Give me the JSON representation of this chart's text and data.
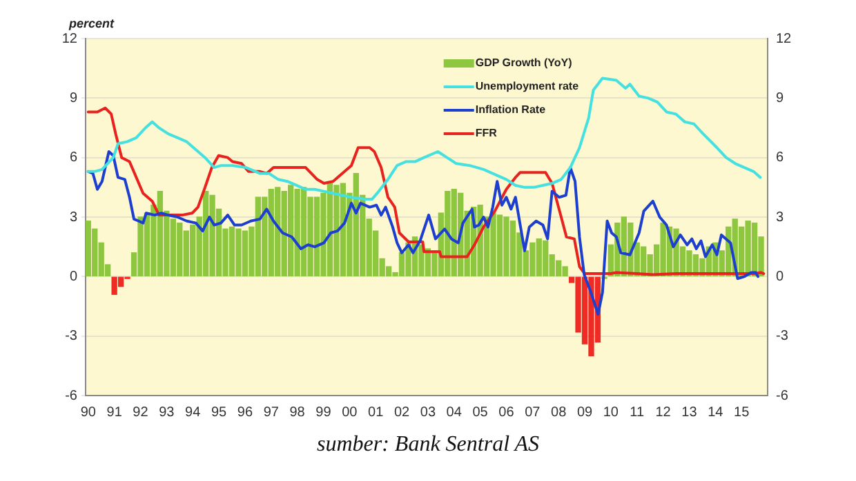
{
  "chart_data": {
    "type": "bar",
    "ylabel": "percent",
    "annotations": [
      "sumber:  Bank Sentral AS"
    ],
    "xlim": [
      1989.9,
      2016
    ],
    "xticks": [
      {
        "value": 1990,
        "label": "90"
      },
      {
        "value": 1991,
        "label": "91"
      },
      {
        "value": 1992,
        "label": "92"
      },
      {
        "value": 1993,
        "label": "93"
      },
      {
        "value": 1994,
        "label": "94"
      },
      {
        "value": 1995,
        "label": "95"
      },
      {
        "value": 1996,
        "label": "96"
      },
      {
        "value": 1997,
        "label": "97"
      },
      {
        "value": 1998,
        "label": "98"
      },
      {
        "value": 1999,
        "label": "99"
      },
      {
        "value": 2000,
        "label": "00"
      },
      {
        "value": 2001,
        "label": "01"
      },
      {
        "value": 2002,
        "label": "02"
      },
      {
        "value": 2003,
        "label": "03"
      },
      {
        "value": 2004,
        "label": "04"
      },
      {
        "value": 2005,
        "label": "05"
      },
      {
        "value": 2006,
        "label": "06"
      },
      {
        "value": 2007,
        "label": "07"
      },
      {
        "value": 2008,
        "label": "08"
      },
      {
        "value": 2009,
        "label": "09"
      },
      {
        "value": 2010,
        "label": "10"
      },
      {
        "value": 2011,
        "label": "11"
      },
      {
        "value": 2012,
        "label": "12"
      },
      {
        "value": 2013,
        "label": "13"
      },
      {
        "value": 2014,
        "label": "14"
      },
      {
        "value": 2015,
        "label": "15"
      }
    ],
    "ylim": [
      -6,
      12
    ],
    "yticks": [
      -6,
      -3,
      0,
      3,
      6,
      9,
      12
    ],
    "y2lim": [
      -6,
      12
    ],
    "y2ticks": [
      -6,
      -3,
      0,
      3,
      6,
      9,
      12
    ],
    "grid": "y",
    "legend": "top",
    "marker": "none",
    "series": [
      {
        "name": "GDP Growth (YoY)",
        "color": "#8dc63f",
        "x": [
          1990,
          1990.25,
          1990.5,
          1990.75,
          1991,
          1991.25,
          1991.5,
          1991.75,
          1992,
          1992.25,
          1992.5,
          1992.75,
          1993,
          1993.25,
          1993.5,
          1993.75,
          1994,
          1994.25,
          1994.5,
          1994.75,
          1995,
          1995.25,
          1995.5,
          1995.75,
          1996,
          1996.25,
          1996.5,
          1996.75,
          1997,
          1997.25,
          1997.5,
          1997.75,
          1998,
          1998.25,
          1998.5,
          1998.75,
          1999,
          1999.25,
          1999.5,
          1999.75,
          2000,
          2000.25,
          2000.5,
          2000.75,
          2001,
          2001.25,
          2001.5,
          2001.75,
          2002,
          2002.25,
          2002.5,
          2002.75,
          2003,
          2003.25,
          2003.5,
          2003.75,
          2004,
          2004.25,
          2004.5,
          2004.75,
          2005,
          2005.25,
          2005.5,
          2005.75,
          2006,
          2006.25,
          2006.5,
          2006.75,
          2007,
          2007.25,
          2007.5,
          2007.75,
          2008,
          2008.25,
          2008.5,
          2008.75,
          2009,
          2009.25,
          2009.5,
          2009.75,
          2010,
          2010.25,
          2010.5,
          2010.75,
          2011,
          2011.25,
          2011.5,
          2011.75,
          2012,
          2012.25,
          2012.5,
          2012.75,
          2013,
          2013.25,
          2013.5,
          2013.75,
          2014,
          2014.25,
          2014.5,
          2014.75,
          2015,
          2015.25,
          2015.5,
          2015.75
        ],
        "values": [
          2.8,
          2.4,
          1.7,
          0.6,
          -0.9,
          -0.5,
          -0.1,
          1.2,
          3.0,
          3.2,
          3.6,
          4.3,
          3.3,
          2.9,
          2.7,
          2.3,
          2.6,
          3.0,
          4.3,
          4.1,
          3.4,
          2.4,
          2.5,
          2.4,
          2.3,
          2.5,
          4.0,
          4.0,
          4.4,
          4.5,
          4.3,
          4.6,
          4.4,
          4.5,
          4.0,
          4.0,
          4.2,
          4.7,
          4.6,
          4.7,
          4.2,
          5.2,
          4.1,
          2.9,
          2.3,
          0.9,
          0.5,
          0.2,
          1.2,
          1.7,
          2.0,
          1.6,
          1.4,
          1.3,
          3.2,
          4.3,
          4.4,
          4.2,
          3.3,
          3.5,
          3.6,
          3.0,
          3.2,
          3.1,
          3.0,
          2.8,
          2.2,
          1.3,
          1.7,
          1.9,
          1.8,
          1.1,
          0.8,
          0.5,
          -0.3,
          -2.8,
          -3.4,
          -4.0,
          -3.3,
          -0.1,
          1.6,
          2.7,
          3.0,
          2.7,
          1.7,
          1.5,
          1.1,
          1.6,
          2.7,
          2.5,
          2.4,
          1.5,
          1.3,
          1.1,
          0.9,
          1.5,
          1.7,
          1.3,
          2.5,
          2.9,
          2.5,
          2.8,
          2.7,
          2.0
        ],
        "colors": [
          "#8dc63f",
          "#8dc63f",
          "#8dc63f",
          "#8dc63f",
          "#ee2b24",
          "#ee2b24",
          "#ee2b24",
          "#8dc63f",
          "#8dc63f",
          "#8dc63f",
          "#8dc63f",
          "#8dc63f",
          "#8dc63f",
          "#8dc63f",
          "#8dc63f",
          "#8dc63f",
          "#8dc63f",
          "#8dc63f",
          "#8dc63f",
          "#8dc63f",
          "#8dc63f",
          "#8dc63f",
          "#8dc63f",
          "#8dc63f",
          "#8dc63f",
          "#8dc63f",
          "#8dc63f",
          "#8dc63f",
          "#8dc63f",
          "#8dc63f",
          "#8dc63f",
          "#8dc63f",
          "#8dc63f",
          "#8dc63f",
          "#8dc63f",
          "#8dc63f",
          "#8dc63f",
          "#8dc63f",
          "#8dc63f",
          "#8dc63f",
          "#8dc63f",
          "#8dc63f",
          "#8dc63f",
          "#8dc63f",
          "#8dc63f",
          "#8dc63f",
          "#8dc63f",
          "#8dc63f",
          "#8dc63f",
          "#8dc63f",
          "#8dc63f",
          "#8dc63f",
          "#8dc63f",
          "#8dc63f",
          "#8dc63f",
          "#8dc63f",
          "#8dc63f",
          "#8dc63f",
          "#8dc63f",
          "#8dc63f",
          "#8dc63f",
          "#8dc63f",
          "#8dc63f",
          "#8dc63f",
          "#8dc63f",
          "#8dc63f",
          "#8dc63f",
          "#8dc63f",
          "#8dc63f",
          "#8dc63f",
          "#8dc63f",
          "#8dc63f",
          "#8dc63f",
          "#8dc63f",
          "#ee2b24",
          "#ee2b24",
          "#ee2b24",
          "#ee2b24",
          "#ee2b24",
          "#8dc63f",
          "#8dc63f",
          "#8dc63f",
          "#8dc63f",
          "#8dc63f",
          "#8dc63f",
          "#8dc63f",
          "#8dc63f",
          "#8dc63f",
          "#8dc63f",
          "#8dc63f",
          "#8dc63f",
          "#8dc63f",
          "#8dc63f",
          "#8dc63f",
          "#8dc63f",
          "#8dc63f",
          "#8dc63f",
          "#8dc63f",
          "#8dc63f",
          "#8dc63f",
          "#8dc63f",
          "#8dc63f",
          "#8dc63f",
          "#8dc63f"
        ]
      },
      {
        "name": "Unemployment rate",
        "type": "line",
        "color": "#45e0e0",
        "x": [
          1990,
          1990.26,
          1990.53,
          1990.96,
          1991.14,
          1991.49,
          1991.84,
          1992.19,
          1992.45,
          1992.71,
          1993.06,
          1993.42,
          1993.77,
          1994.12,
          1994.47,
          1994.82,
          1995.08,
          1995.52,
          1996.04,
          1996.57,
          1996.92,
          1997.27,
          1997.62,
          1997.97,
          1998.32,
          1998.67,
          1999.02,
          1999.37,
          1999.72,
          2000.07,
          2000.6,
          2000.86,
          2001.12,
          2001.47,
          2001.82,
          2002.17,
          2002.52,
          2002.85,
          2003.38,
          2003.73,
          2004.08,
          2004.6,
          2005.13,
          2005.65,
          2006,
          2006.35,
          2006.7,
          2007.05,
          2007.4,
          2007.75,
          2008.1,
          2008.45,
          2008.8,
          2009.15,
          2009.33,
          2009.68,
          2010.21,
          2010.56,
          2010.73,
          2011.08,
          2011.43,
          2011.78,
          2012.13,
          2012.48,
          2012.83,
          2013.18,
          2013.53,
          2014.06,
          2014.41,
          2014.76,
          2015.11,
          2015.46,
          2015.72
        ],
        "values": [
          5.3,
          5.3,
          5.4,
          6.0,
          6.7,
          6.8,
          7.0,
          7.5,
          7.8,
          7.5,
          7.2,
          7.0,
          6.8,
          6.4,
          6.0,
          5.5,
          5.6,
          5.6,
          5.5,
          5.2,
          5.2,
          4.9,
          4.8,
          4.6,
          4.4,
          4.4,
          4.3,
          4.2,
          4.1,
          4.0,
          3.9,
          3.9,
          4.3,
          4.9,
          5.6,
          5.8,
          5.8,
          6.0,
          6.3,
          6.0,
          5.7,
          5.6,
          5.4,
          5.1,
          4.9,
          4.6,
          4.5,
          4.5,
          4.6,
          4.7,
          4.9,
          5.5,
          6.5,
          8.0,
          9.4,
          10.0,
          9.9,
          9.5,
          9.7,
          9.1,
          9.0,
          8.8,
          8.3,
          8.2,
          7.8,
          7.7,
          7.2,
          6.5,
          6.0,
          5.7,
          5.5,
          5.3,
          5.0
        ]
      },
      {
        "name": "Inflation Rate",
        "type": "line",
        "color": "#1c3fd0",
        "x": [
          1990,
          1990.18,
          1990.35,
          1990.53,
          1990.79,
          1990.96,
          1991.14,
          1991.4,
          1991.58,
          1991.75,
          1991.93,
          1992.1,
          1992.22,
          1992.54,
          1992.8,
          1993.06,
          1993.42,
          1993.77,
          1994.12,
          1994.38,
          1994.64,
          1994.82,
          1995.08,
          1995.34,
          1995.6,
          1995.87,
          1996.22,
          1996.57,
          1996.83,
          1997.09,
          1997.44,
          1997.79,
          1998.14,
          1998.41,
          1998.67,
          1999.02,
          1999.28,
          1999.54,
          1999.81,
          2000.07,
          2000.25,
          2000.42,
          2000.77,
          2001.03,
          2001.21,
          2001.38,
          2001.65,
          2001.82,
          2002,
          2002.26,
          2002.43,
          2002.7,
          2003.03,
          2003.29,
          2003.64,
          2003.9,
          2004.16,
          2004.34,
          2004.69,
          2004.78,
          2004.95,
          2005.13,
          2005.3,
          2005.48,
          2005.65,
          2005.83,
          2006,
          2006.18,
          2006.35,
          2006.7,
          2006.88,
          2007.14,
          2007.4,
          2007.58,
          2007.75,
          2008.02,
          2008.28,
          2008.45,
          2008.63,
          2008.8,
          2008.98,
          2009.24,
          2009.51,
          2009.68,
          2009.86,
          2010.03,
          2010.21,
          2010.38,
          2010.73,
          2011.08,
          2011.26,
          2011.61,
          2011.87,
          2012.13,
          2012.39,
          2012.66,
          2012.92,
          2013.1,
          2013.27,
          2013.45,
          2013.62,
          2013.88,
          2014.06,
          2014.23,
          2014.58,
          2014.85,
          2015.11,
          2015.37,
          2015.55,
          2015.63
        ],
        "values": [
          5.3,
          5.2,
          4.4,
          4.8,
          6.3,
          6.1,
          5.0,
          4.9,
          4.0,
          2.9,
          2.8,
          2.7,
          3.2,
          3.1,
          3.2,
          3.1,
          3.0,
          2.8,
          2.7,
          2.3,
          3.0,
          2.6,
          2.7,
          3.1,
          2.6,
          2.6,
          2.8,
          2.9,
          3.4,
          2.8,
          2.2,
          2.0,
          1.4,
          1.6,
          1.5,
          1.7,
          2.2,
          2.3,
          2.7,
          3.7,
          3.2,
          3.7,
          3.5,
          3.6,
          3.1,
          3.5,
          2.5,
          1.7,
          1.2,
          1.6,
          1.2,
          1.8,
          3.1,
          1.9,
          2.4,
          1.9,
          1.7,
          2.7,
          3.4,
          2.5,
          2.6,
          3.0,
          2.5,
          3.5,
          4.8,
          3.6,
          4.0,
          3.4,
          4.0,
          1.3,
          2.5,
          2.8,
          2.6,
          1.9,
          4.3,
          4.0,
          4.1,
          5.5,
          4.8,
          2.0,
          0.1,
          -0.8,
          -1.9,
          -0.8,
          2.8,
          2.2,
          2.0,
          1.2,
          1.1,
          2.2,
          3.3,
          3.8,
          3.0,
          2.6,
          1.5,
          2.1,
          1.6,
          1.9,
          1.4,
          1.8,
          1.0,
          1.6,
          1.1,
          2.1,
          1.7,
          -0.1,
          0.0,
          0.2,
          0.2,
          0.0
        ]
      },
      {
        "name": "FFR",
        "type": "line",
        "color": "#e8231f",
        "x": [
          1990,
          1990.35,
          1990.65,
          1990.88,
          1991.05,
          1991.28,
          1991.58,
          1991.84,
          1992.1,
          1992.45,
          1992.71,
          1993.06,
          1993.59,
          1993.98,
          1994.2,
          1994.47,
          1994.73,
          1994.99,
          1995.34,
          1995.52,
          1995.87,
          1996.13,
          1996.57,
          1996.83,
          1997.09,
          1997.62,
          1998.32,
          1998.76,
          1999.02,
          1999.37,
          1999.72,
          2000.07,
          2000.33,
          2000.77,
          2000.95,
          2001.21,
          2001.47,
          2001.73,
          2001.91,
          2002.26,
          2002.8,
          2002.85,
          2003.45,
          2003.5,
          2004.5,
          2004.78,
          2005.13,
          2005.56,
          2006,
          2006.35,
          2006.53,
          2007.5,
          2007.75,
          2008.1,
          2008.3,
          2008.6,
          2008.8,
          2009,
          2010,
          2010.2,
          2011,
          2011.6,
          2012.5,
          2015.5,
          2015.75,
          2015.85
        ],
        "values": [
          8.3,
          8.3,
          8.5,
          8.2,
          7.2,
          6.0,
          5.8,
          5.0,
          4.2,
          3.8,
          3.1,
          3.1,
          3.1,
          3.2,
          3.5,
          4.5,
          5.5,
          6.1,
          6.0,
          5.8,
          5.7,
          5.3,
          5.3,
          5.2,
          5.5,
          5.5,
          5.5,
          4.9,
          4.7,
          4.8,
          5.2,
          5.6,
          6.5,
          6.5,
          6.3,
          5.5,
          4.0,
          3.5,
          2.2,
          1.75,
          1.75,
          1.25,
          1.25,
          1.0,
          1.0,
          1.6,
          2.5,
          3.3,
          4.4,
          5.0,
          5.25,
          5.25,
          4.7,
          3.0,
          2.0,
          1.9,
          0.5,
          0.15,
          0.15,
          0.2,
          0.15,
          0.1,
          0.15,
          0.15,
          0.2,
          0.15
        ]
      }
    ]
  }
}
